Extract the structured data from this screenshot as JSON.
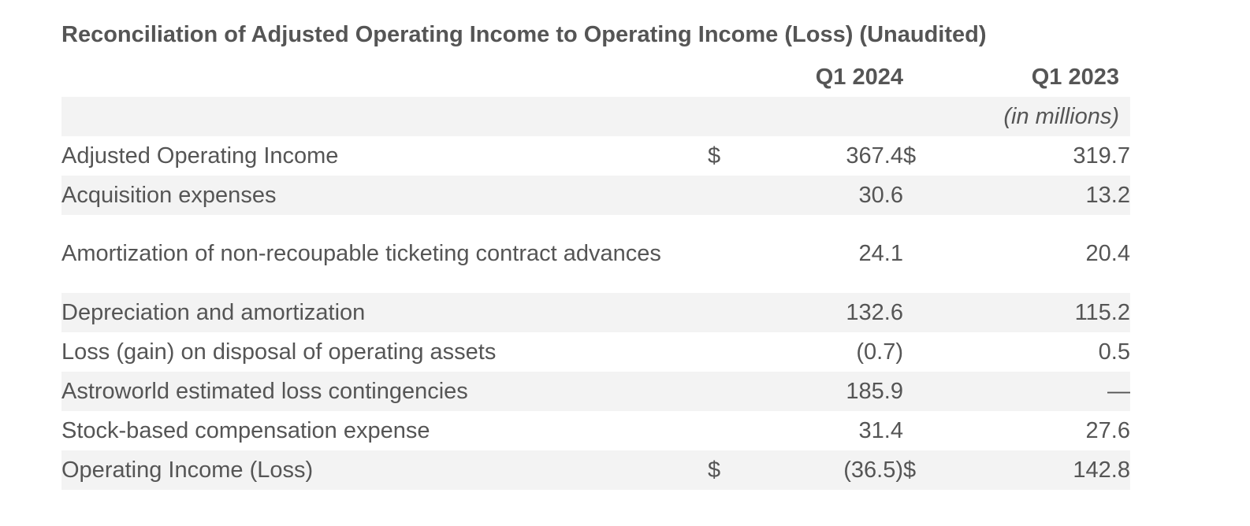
{
  "title": "Reconciliation of Adjusted Operating Income to Operating Income (Loss) (Unaudited)",
  "columns": {
    "q1_2024": "Q1 2024",
    "q1_2023": "Q1 2023",
    "units": "(in millions)"
  },
  "rows": [
    {
      "label": "Adjusted Operating Income",
      "cur1": "$",
      "v2024": "367.4",
      "cur2": "$",
      "v2023": "319.7"
    },
    {
      "label": "Acquisition expenses",
      "cur1": "",
      "v2024": "30.6",
      "cur2": "",
      "v2023": "13.2"
    },
    {
      "label": "Amortization of non-recoupable ticketing contract advances",
      "cur1": "",
      "v2024": "24.1",
      "cur2": "",
      "v2023": "20.4"
    },
    {
      "label": "Depreciation and amortization",
      "cur1": "",
      "v2024": "132.6",
      "cur2": "",
      "v2023": "115.2"
    },
    {
      "label": "Loss (gain) on disposal of operating assets",
      "cur1": "",
      "v2024": "(0.7)",
      "cur2": "",
      "v2023": "0.5"
    },
    {
      "label": "Astroworld estimated loss contingencies",
      "cur1": "",
      "v2024": "185.9",
      "cur2": "",
      "v2023": "—"
    },
    {
      "label": "Stock-based compensation expense",
      "cur1": "",
      "v2024": "31.4",
      "cur2": "",
      "v2023": "27.6"
    },
    {
      "label": "Operating Income (Loss)",
      "cur1": "$",
      "v2024": "(36.5)",
      "cur2": "$",
      "v2023": "142.8"
    }
  ]
}
